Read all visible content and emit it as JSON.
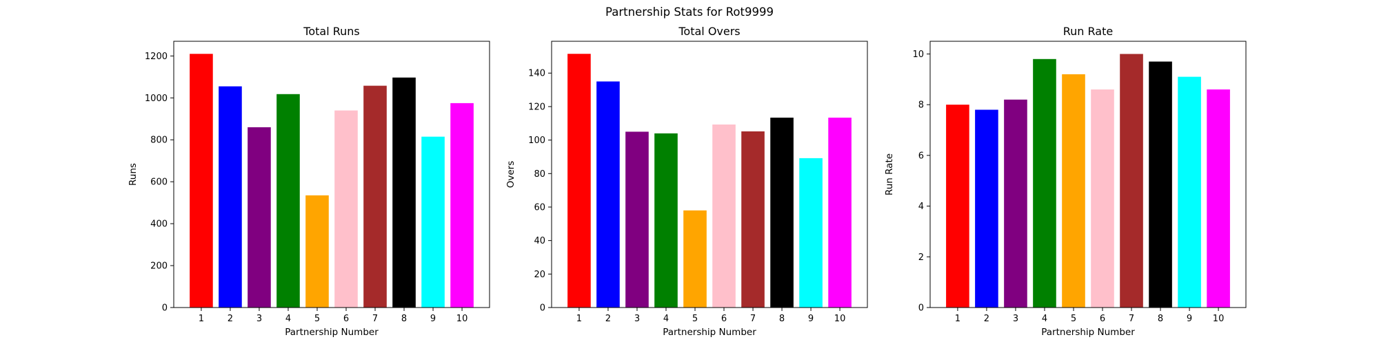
{
  "figure_title": "Partnership Stats for Rot9999",
  "chart_data": [
    {
      "type": "bar",
      "title": "Total Runs",
      "xlabel": "Partnership Number",
      "ylabel": "Runs",
      "categories": [
        "1",
        "2",
        "3",
        "4",
        "5",
        "6",
        "7",
        "8",
        "9",
        "10"
      ],
      "values": [
        1210,
        1055,
        860,
        1018,
        535,
        940,
        1058,
        1097,
        815,
        975
      ],
      "colors": [
        "#ff0000",
        "#0000ff",
        "#800080",
        "#008000",
        "#ffa500",
        "#ffc0cb",
        "#a52a2a",
        "#000000",
        "#00ffff",
        "#ff00ff"
      ],
      "ylim": [
        0,
        1270
      ],
      "yticks": [
        0,
        200,
        400,
        600,
        800,
        1000,
        1200
      ],
      "grid": false
    },
    {
      "type": "bar",
      "title": "Total Overs",
      "xlabel": "Partnership Number",
      "ylabel": "Overs",
      "categories": [
        "1",
        "2",
        "3",
        "4",
        "5",
        "6",
        "7",
        "8",
        "9",
        "10"
      ],
      "values": [
        151.5,
        135,
        105,
        104,
        58,
        109.3,
        105.2,
        113.4,
        89.2,
        113.4
      ],
      "colors": [
        "#ff0000",
        "#0000ff",
        "#800080",
        "#008000",
        "#ffa500",
        "#ffc0cb",
        "#a52a2a",
        "#000000",
        "#00ffff",
        "#ff00ff"
      ],
      "ylim": [
        0,
        159
      ],
      "yticks": [
        0,
        20,
        40,
        60,
        80,
        100,
        120,
        140
      ],
      "grid": false
    },
    {
      "type": "bar",
      "title": "Run Rate",
      "xlabel": "Partnership Number",
      "ylabel": "Run Rate",
      "categories": [
        "1",
        "2",
        "3",
        "4",
        "5",
        "6",
        "7",
        "8",
        "9",
        "10"
      ],
      "values": [
        8.0,
        7.8,
        8.2,
        9.8,
        9.2,
        8.6,
        10.0,
        9.7,
        9.1,
        8.6
      ],
      "colors": [
        "#ff0000",
        "#0000ff",
        "#800080",
        "#008000",
        "#ffa500",
        "#ffc0cb",
        "#a52a2a",
        "#000000",
        "#00ffff",
        "#ff00ff"
      ],
      "ylim": [
        0,
        10.5
      ],
      "yticks": [
        0,
        2,
        4,
        6,
        8,
        10
      ],
      "grid": false
    }
  ]
}
